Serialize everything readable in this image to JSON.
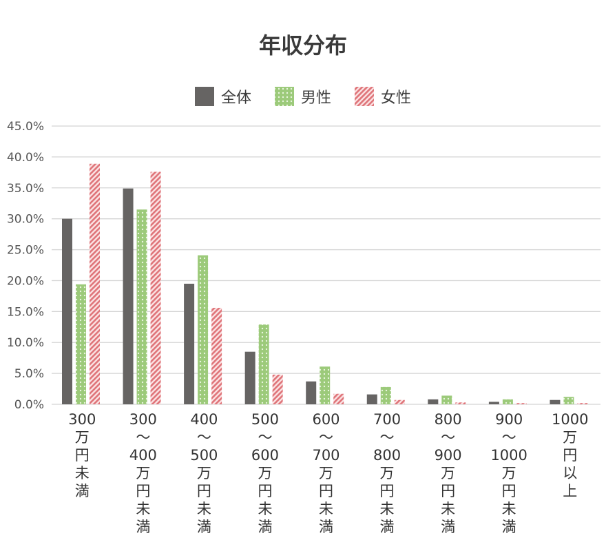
{
  "chart_data": {
    "type": "bar",
    "title": "年収分布",
    "xlabel": "",
    "ylabel": "",
    "ylim": [
      0,
      45
    ],
    "yticks": [
      "0.0%",
      "5.0%",
      "10.0%",
      "15.0%",
      "20.0%",
      "25.0%",
      "30.0%",
      "35.0%",
      "40.0%",
      "45.0%"
    ],
    "grid": true,
    "legend_position": "top-center",
    "categories": [
      [
        "300",
        "万",
        "円",
        "未",
        "満"
      ],
      [
        "300",
        "〜",
        "400",
        "万",
        "円",
        "未",
        "満"
      ],
      [
        "400",
        "〜",
        "500",
        "万",
        "円",
        "未",
        "満"
      ],
      [
        "500",
        "〜",
        "600",
        "万",
        "円",
        "未",
        "満"
      ],
      [
        "600",
        "〜",
        "700",
        "万",
        "円",
        "未",
        "満"
      ],
      [
        "700",
        "〜",
        "800",
        "万",
        "円",
        "未",
        "満"
      ],
      [
        "800",
        "〜",
        "900",
        "万",
        "円",
        "未",
        "満"
      ],
      [
        "900",
        "〜",
        "1000",
        "万",
        "円",
        "未",
        "満"
      ],
      [
        "1000",
        "万",
        "円",
        "以",
        "上"
      ]
    ],
    "series": [
      {
        "name": "全体",
        "color": "#666463",
        "pattern": "solid",
        "values": [
          30.0,
          34.9,
          19.5,
          8.5,
          3.7,
          1.6,
          0.8,
          0.4,
          0.7
        ]
      },
      {
        "name": "男性",
        "color": "#a3cf85",
        "pattern": "dots",
        "values": [
          19.4,
          31.5,
          24.1,
          12.9,
          6.1,
          2.8,
          1.4,
          0.8,
          1.2
        ]
      },
      {
        "name": "女性",
        "color": "#e07b80",
        "pattern": "stripes",
        "values": [
          38.9,
          37.6,
          15.6,
          4.8,
          1.7,
          0.7,
          0.3,
          0.2,
          0.2
        ]
      }
    ]
  }
}
